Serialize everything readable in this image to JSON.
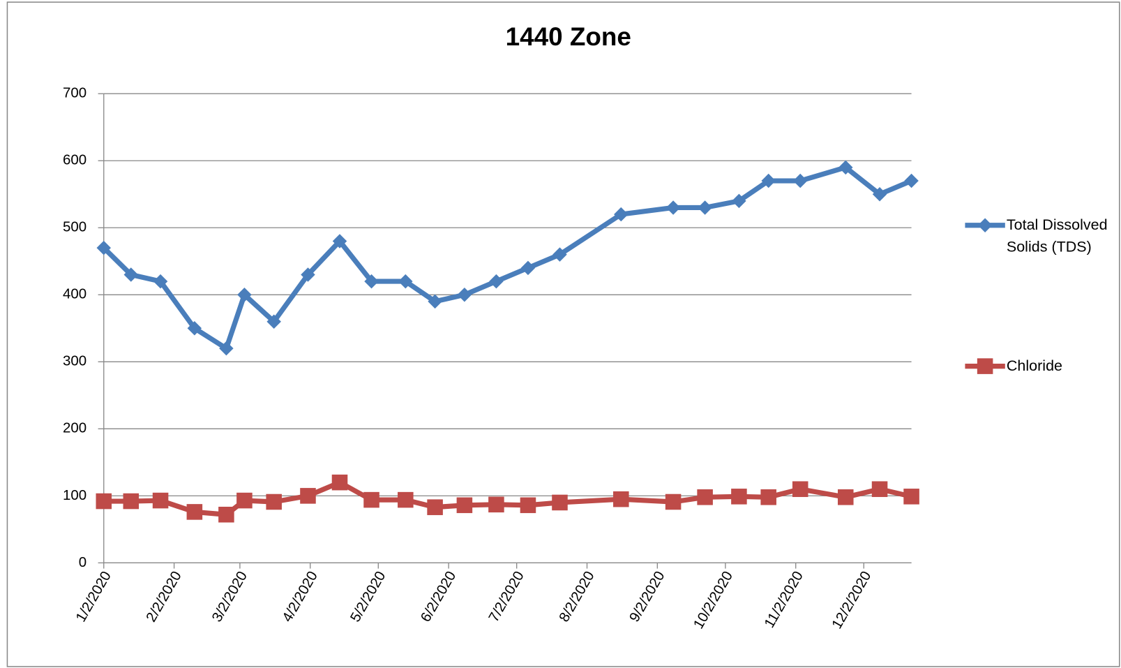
{
  "chart_data": {
    "type": "line",
    "title": "1440 Zone",
    "x": [
      "1/2/2020",
      "1/14/2020",
      "1/27/2020",
      "2/11/2020",
      "2/25/2020",
      "3/4/2020",
      "3/17/2020",
      "4/1/2020",
      "4/15/2020",
      "4/29/2020",
      "5/14/2020",
      "5/27/2020",
      "6/9/2020",
      "6/23/2020",
      "7/7/2020",
      "7/21/2020",
      "8/17/2020",
      "9/9/2020",
      "9/23/2020",
      "10/8/2020",
      "10/21/2020",
      "11/4/2020",
      "11/24/2020",
      "12/9/2020",
      "12/23/2020"
    ],
    "series": [
      {
        "name": "Total Dissolved Solids (TDS)",
        "color": "#4a7ebb",
        "marker": "diamond",
        "values": [
          470,
          430,
          420,
          350,
          320,
          400,
          360,
          430,
          480,
          420,
          420,
          390,
          400,
          420,
          440,
          460,
          520,
          530,
          530,
          540,
          570,
          570,
          590,
          550,
          570
        ]
      },
      {
        "name": "Chloride",
        "color": "#be4b48",
        "marker": "square",
        "values": [
          92,
          92,
          93,
          76,
          72,
          93,
          91,
          100,
          120,
          94,
          94,
          83,
          86,
          87,
          86,
          90,
          95,
          91,
          98,
          99,
          98,
          110,
          98,
          110,
          99
        ]
      }
    ],
    "xlim": [
      "1/2/2020",
      "12/23/2020"
    ],
    "xticks": [
      "1/2/2020",
      "2/2/2020",
      "3/2/2020",
      "4/2/2020",
      "5/2/2020",
      "6/2/2020",
      "7/2/2020",
      "8/2/2020",
      "9/2/2020",
      "10/2/2020",
      "11/2/2020",
      "12/2/2020"
    ],
    "ylim": [
      0,
      700
    ],
    "yticks": [
      0,
      100,
      200,
      300,
      400,
      500,
      600,
      700
    ],
    "grid": true,
    "legend": "right"
  }
}
